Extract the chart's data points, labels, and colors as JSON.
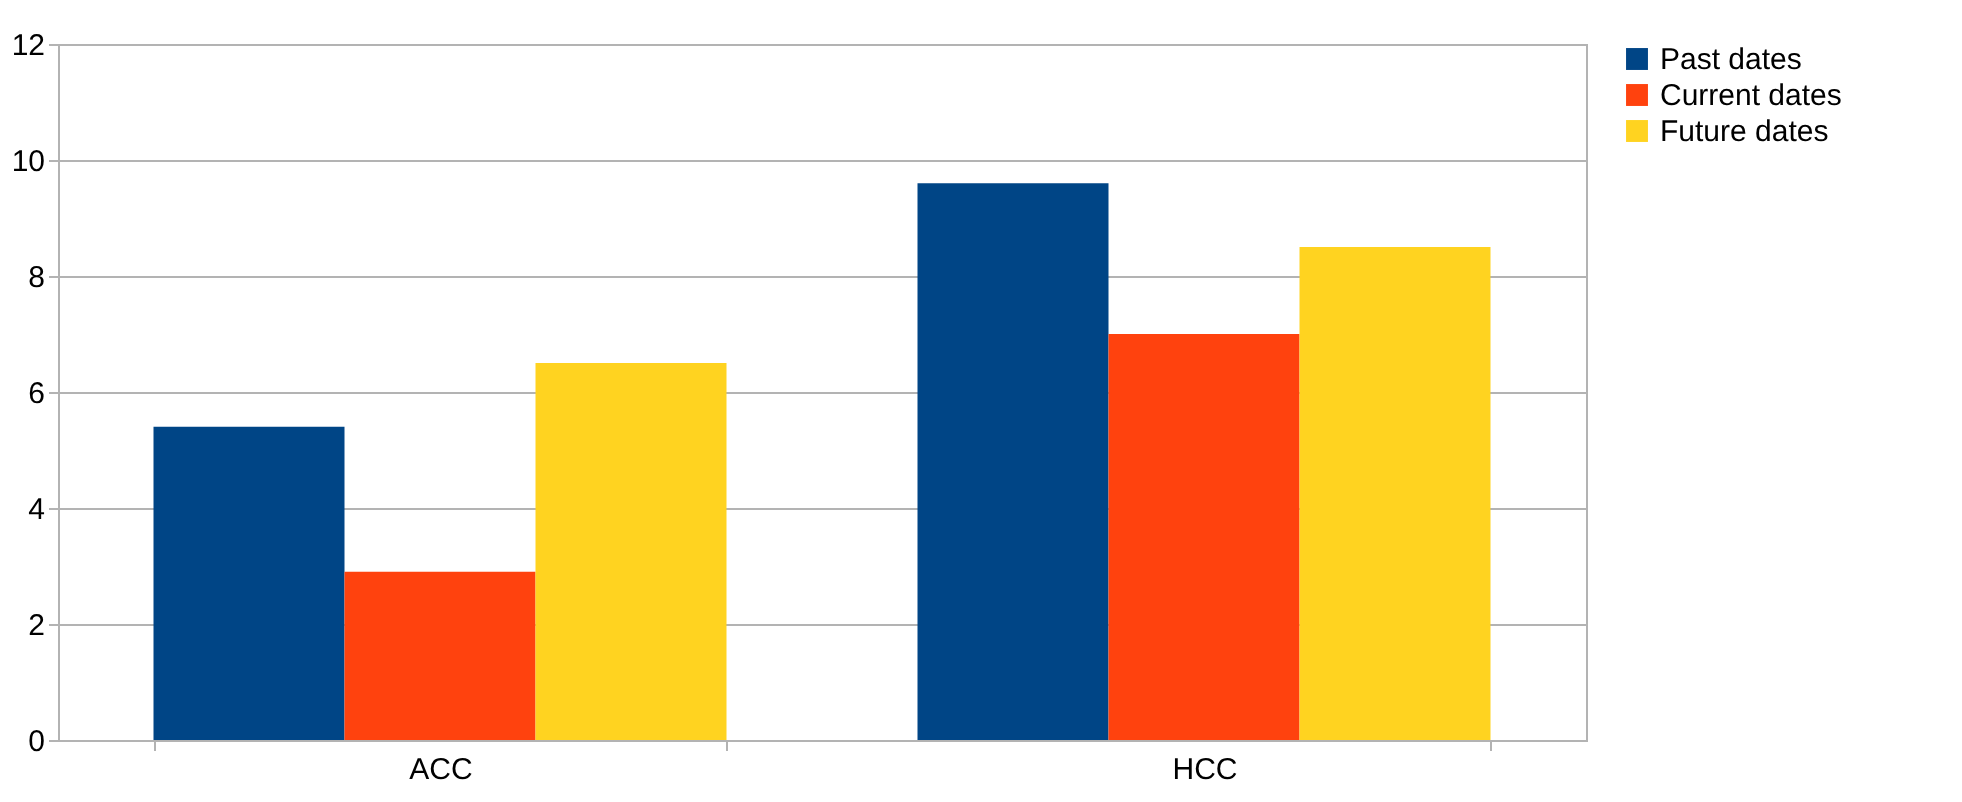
{
  "chart_data": {
    "type": "bar",
    "categories": [
      "ACC",
      "HCC"
    ],
    "series": [
      {
        "name": "Past dates",
        "color": "#004586",
        "values": [
          5.4,
          9.6
        ]
      },
      {
        "name": "Current dates",
        "color": "#ff420e",
        "values": [
          2.9,
          7.0
        ]
      },
      {
        "name": "Future dates",
        "color": "#ffd320",
        "values": [
          6.5,
          8.5
        ]
      }
    ],
    "ylim": [
      0,
      12
    ],
    "yticks": [
      0,
      2,
      4,
      6,
      8,
      10,
      12
    ],
    "grid": "y",
    "legend": "right"
  }
}
